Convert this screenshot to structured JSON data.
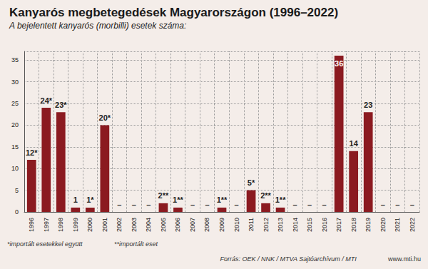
{
  "chart_data": {
    "type": "bar",
    "title": "Kanyarós megbetegedések Magyarországon (1996–2022)",
    "subtitle": "A bejelentett kanyarós (morbilli) esetek száma:",
    "categories": [
      "1996",
      "1997",
      "1998",
      "1999",
      "2000",
      "2001",
      "2002",
      "2003",
      "2004",
      "2005",
      "2006",
      "2007",
      "2008",
      "2009",
      "2010",
      "2011",
      "2012",
      "2013",
      "2014",
      "2015",
      "2016",
      "2017",
      "2018",
      "2019",
      "2020",
      "2021",
      "2022"
    ],
    "values": [
      12,
      24,
      23,
      1,
      1,
      20,
      0,
      0,
      0,
      2,
      1,
      0,
      0,
      1,
      0,
      5,
      2,
      1,
      0,
      0,
      0,
      36,
      14,
      23,
      0,
      0,
      0
    ],
    "value_labels": [
      "12*",
      "24*",
      "23*",
      "1",
      "1*",
      "20*",
      "–",
      "–",
      "–",
      "2**",
      "1**",
      "–",
      "–",
      "1**",
      "–",
      "5*",
      "2**",
      "1**",
      "–",
      "–",
      "–",
      "36",
      "14",
      "23",
      "–",
      "–",
      "–"
    ],
    "color": "#8b1a20",
    "ylim": [
      0,
      37
    ],
    "yticks": [
      0,
      5,
      10,
      15,
      20,
      25,
      30,
      35
    ],
    "grid": true,
    "data_labels": true,
    "annotations": [
      "*importált esetekkel együtt",
      "**importált eset"
    ],
    "source": "Forrás: OEK / NNK / MTVA Sajtóarchívum / MTI",
    "website": "www.mti.hu"
  }
}
